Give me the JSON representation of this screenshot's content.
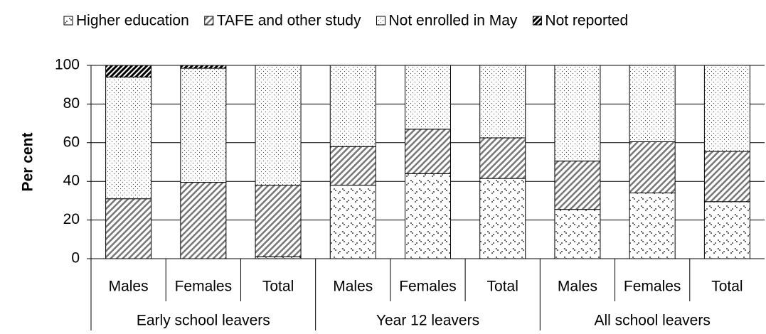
{
  "chart_data": {
    "type": "stacked-bar",
    "y_label": "Per cent",
    "groups": [
      "Early school leavers",
      "Year 12 leavers",
      "All school leavers"
    ],
    "categories": [
      "Males",
      "Females",
      "Total",
      "Males",
      "Females",
      "Total",
      "Males",
      "Females",
      "Total"
    ],
    "series": [
      {
        "name": "Higher education",
        "values": [
          0,
          0,
          1,
          38,
          44,
          41.5,
          25.5,
          34,
          29.5
        ]
      },
      {
        "name": "TAFE and other study",
        "values": [
          31,
          39.5,
          37,
          20,
          23,
          21,
          25,
          26.5,
          26
        ]
      },
      {
        "name": "Not enrolled in May",
        "values": [
          63,
          59,
          62,
          42,
          33,
          37.5,
          49.5,
          39.5,
          44.5
        ]
      },
      {
        "name": "Not reported",
        "values": [
          6,
          1.5,
          0,
          0,
          0,
          0,
          0,
          0,
          0
        ]
      }
    ],
    "ylim": [
      0,
      100
    ],
    "yticks": [
      0,
      20,
      40,
      60,
      80,
      100
    ],
    "grid": true
  }
}
